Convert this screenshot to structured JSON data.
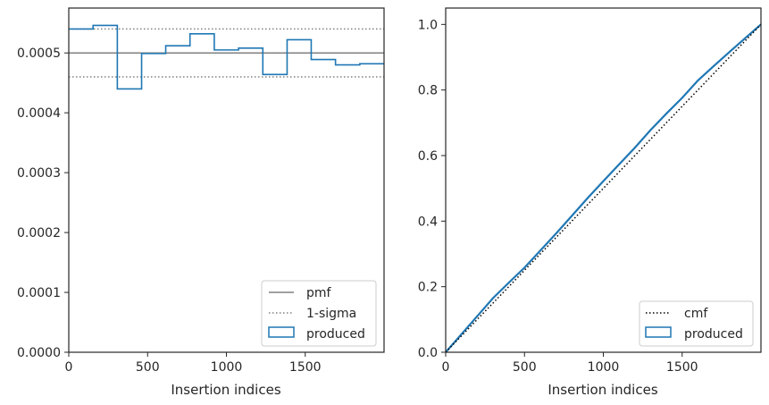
{
  "chart_data": [
    {
      "type": "histogram-step",
      "xlabel": "Insertion indices",
      "ylabel": "",
      "xlim": [
        0,
        2000
      ],
      "ylim": [
        0,
        0.000575
      ],
      "x_ticks": [
        0,
        500,
        1000,
        1500
      ],
      "x_tick_labels": [
        "0",
        "500",
        "1000",
        "1500"
      ],
      "y_ticks": [
        0,
        0.0001,
        0.0002,
        0.0003,
        0.0004,
        0.0005
      ],
      "y_tick_labels": [
        "0.0000",
        "0.0001",
        "0.0002",
        "0.0003",
        "0.0004",
        "0.0005"
      ],
      "grid": false,
      "legend_position": "lower right",
      "lines": [
        {
          "name": "pmf",
          "style": "solid",
          "color": "#808080",
          "y": 0.0005
        },
        {
          "name": "1-sigma",
          "style": "dotted",
          "color": "#808080",
          "y_values": [
            0.00046,
            0.00054
          ]
        }
      ],
      "series": [
        {
          "name": "produced",
          "color": "#1f77b4",
          "bin_edges": [
            0,
            154,
            308,
            462,
            615,
            769,
            923,
            1077,
            1231,
            1385,
            1538,
            1692,
            1846,
            2000
          ],
          "values": [
            0.00054,
            0.000546,
            0.00044,
            0.000499,
            0.000512,
            0.000532,
            0.000505,
            0.000508,
            0.000464,
            0.000522,
            0.000489,
            0.00048,
            0.000482
          ]
        }
      ],
      "legend": [
        "pmf",
        "1-sigma",
        "produced"
      ]
    },
    {
      "type": "line",
      "xlabel": "Insertion indices",
      "ylabel": "",
      "xlim": [
        0,
        2000
      ],
      "ylim": [
        0,
        1.05
      ],
      "x_ticks": [
        0,
        500,
        1000,
        1500
      ],
      "x_tick_labels": [
        "0",
        "500",
        "1000",
        "1500"
      ],
      "y_ticks": [
        0,
        0.2,
        0.4,
        0.6,
        0.8,
        1.0
      ],
      "y_tick_labels": [
        "0.0",
        "0.2",
        "0.4",
        "0.6",
        "0.8",
        "1.0"
      ],
      "grid": false,
      "legend_position": "lower right",
      "series": [
        {
          "name": "cmf",
          "style": "dotted",
          "color": "#000000",
          "x": [
            0,
            2000
          ],
          "y": [
            0,
            1.0
          ]
        },
        {
          "name": "produced",
          "style": "solid",
          "color": "#1f77b4",
          "x": [
            0,
            100,
            200,
            300,
            400,
            500,
            600,
            700,
            800,
            900,
            1000,
            1100,
            1200,
            1300,
            1400,
            1500,
            1600,
            1700,
            1800,
            1900,
            2000
          ],
          "y": [
            0,
            0.055,
            0.11,
            0.165,
            0.212,
            0.258,
            0.31,
            0.362,
            0.416,
            0.47,
            0.522,
            0.573,
            0.624,
            0.678,
            0.728,
            0.776,
            0.829,
            0.873,
            0.916,
            0.958,
            1.0
          ]
        }
      ],
      "legend": [
        "cmf",
        "produced"
      ]
    }
  ]
}
